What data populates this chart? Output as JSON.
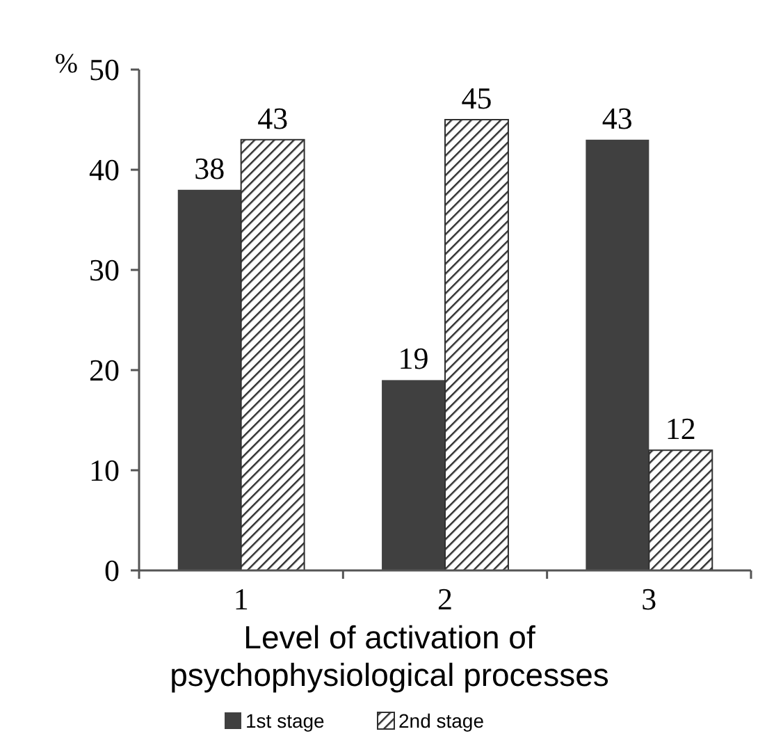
{
  "chart_data": {
    "type": "bar",
    "ylabel": "%",
    "xlabel": "Level of activation of psychophysiological processes",
    "categories": [
      "1",
      "2",
      "3"
    ],
    "series": [
      {
        "name": "1st stage",
        "color": "#404040",
        "values": [
          38,
          19,
          43
        ]
      },
      {
        "name": "2nd stage",
        "color": "#303030",
        "values": [
          43,
          45,
          12
        ]
      }
    ],
    "ylim": [
      0,
      50
    ],
    "yticks": [
      0,
      10,
      20,
      30,
      40,
      50
    ],
    "data_labels": true,
    "legend": "bottom",
    "grid": false
  }
}
